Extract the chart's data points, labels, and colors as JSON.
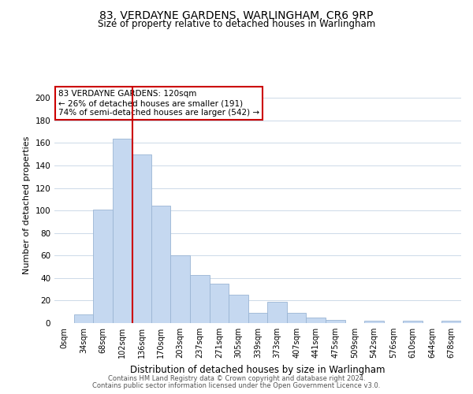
{
  "title": "83, VERDAYNE GARDENS, WARLINGHAM, CR6 9RP",
  "subtitle": "Size of property relative to detached houses in Warlingham",
  "xlabel": "Distribution of detached houses by size in Warlingham",
  "ylabel": "Number of detached properties",
  "bar_labels": [
    "0sqm",
    "34sqm",
    "68sqm",
    "102sqm",
    "136sqm",
    "170sqm",
    "203sqm",
    "237sqm",
    "271sqm",
    "305sqm",
    "339sqm",
    "373sqm",
    "407sqm",
    "441sqm",
    "475sqm",
    "509sqm",
    "542sqm",
    "576sqm",
    "610sqm",
    "644sqm",
    "678sqm"
  ],
  "bar_values": [
    0,
    8,
    101,
    164,
    150,
    104,
    60,
    43,
    35,
    25,
    9,
    19,
    9,
    5,
    3,
    0,
    2,
    0,
    2,
    0,
    2
  ],
  "bar_color": "#c5d8f0",
  "bar_edge_color": "#9ab5d4",
  "vline_color": "#cc0000",
  "vline_pos": 3.53,
  "ylim": [
    0,
    210
  ],
  "yticks": [
    0,
    20,
    40,
    60,
    80,
    100,
    120,
    140,
    160,
    180,
    200
  ],
  "annotation_text": "83 VERDAYNE GARDENS: 120sqm\n← 26% of detached houses are smaller (191)\n74% of semi-detached houses are larger (542) →",
  "annotation_box_color": "#ffffff",
  "annotation_box_edge": "#cc0000",
  "footer1": "Contains HM Land Registry data © Crown copyright and database right 2024.",
  "footer2": "Contains public sector information licensed under the Open Government Licence v3.0.",
  "background_color": "#ffffff",
  "grid_color": "#ccd9e8"
}
